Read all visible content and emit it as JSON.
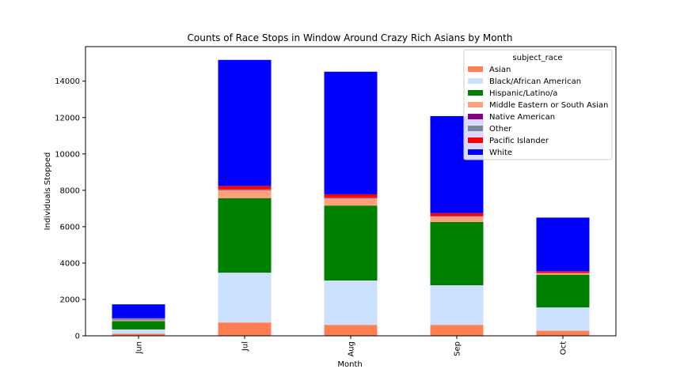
{
  "chart_data": {
    "type": "bar",
    "stacked": true,
    "title": "Counts of Race Stops in Window Around Crazy Rich Asians by Month",
    "xlabel": "Month",
    "ylabel": "Individuals Stopped",
    "categories": [
      "Jun",
      "Jul",
      "Aug",
      "Sep",
      "Oct"
    ],
    "ylim": [
      0,
      15900
    ],
    "yticks": [
      0,
      2000,
      4000,
      6000,
      8000,
      10000,
      12000,
      14000
    ],
    "grid": false,
    "legend": {
      "title": "subject_race",
      "placement": "top-right"
    },
    "series": [
      {
        "name": "Asian",
        "color": "#FF7F50",
        "values": [
          120,
          730,
          600,
          600,
          280
        ]
      },
      {
        "name": "Black/African American",
        "color": "#CCE0FF",
        "values": [
          230,
          2740,
          2440,
          2180,
          1280
        ]
      },
      {
        "name": "Hispanic/Latino/a",
        "color": "#008000",
        "values": [
          460,
          4100,
          4120,
          3480,
          1800
        ]
      },
      {
        "name": "Middle Eastern or South Asian",
        "color": "#FFA07A",
        "values": [
          40,
          430,
          400,
          300,
          80
        ]
      },
      {
        "name": "Native American",
        "color": "#800080",
        "values": [
          5,
          20,
          20,
          20,
          10
        ]
      },
      {
        "name": "Other",
        "color": "#778899",
        "values": [
          100,
          30,
          30,
          20,
          10
        ]
      },
      {
        "name": "Pacific Islander",
        "color": "#FF0000",
        "values": [
          10,
          190,
          170,
          150,
          90
        ]
      },
      {
        "name": "White",
        "color": "#0000FF",
        "values": [
          765,
          6930,
          6740,
          5330,
          2950
        ]
      }
    ]
  }
}
